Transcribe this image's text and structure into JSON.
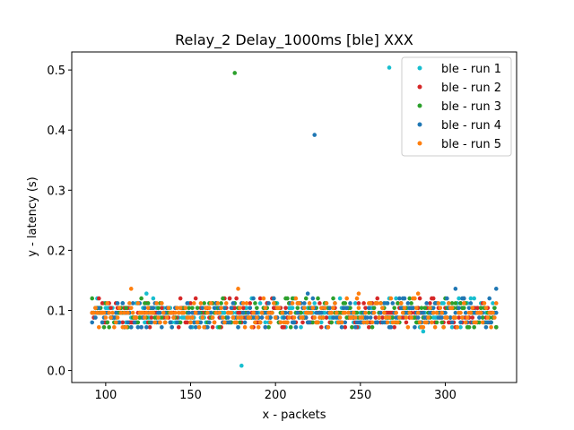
{
  "chart_data": {
    "type": "scatter",
    "title": "Relay_2 Delay_1000ms [ble] XXX",
    "xlabel": "x - packets",
    "ylabel": "y - latency (s)",
    "xlim": [
      80,
      342
    ],
    "ylim": [
      -0.02,
      0.53
    ],
    "xticks": [
      100,
      150,
      200,
      250,
      300
    ],
    "xtick_labels": [
      "100",
      "150",
      "200",
      "250",
      "300"
    ],
    "yticks": [
      0.0,
      0.1,
      0.2,
      0.3,
      0.4,
      0.5
    ],
    "ytick_labels": [
      "0.0",
      "0.1",
      "0.2",
      "0.3",
      "0.4",
      "0.5"
    ],
    "grid": false,
    "legend_position": "upper right",
    "x_range": [
      92,
      330
    ],
    "bulk_latency_range": [
      0.072,
      0.12
    ],
    "series": [
      {
        "name": "ble - run 1",
        "color": "#17becf",
        "outliers": [
          [
            267,
            0.504
          ],
          [
            180,
            0.008
          ],
          [
            287,
            0.065
          ],
          [
            124,
            0.128
          ]
        ]
      },
      {
        "name": "ble - run 2",
        "color": "#d62728",
        "outliers": []
      },
      {
        "name": "ble - run 3",
        "color": "#2ca02c",
        "outliers": [
          [
            176,
            0.495
          ]
        ]
      },
      {
        "name": "ble - run 4",
        "color": "#1f77b4",
        "outliers": [
          [
            223,
            0.392
          ],
          [
            219,
            0.128
          ],
          [
            306,
            0.136
          ],
          [
            330,
            0.136
          ]
        ]
      },
      {
        "name": "ble - run 5",
        "color": "#ff7f0e",
        "outliers": [
          [
            115,
            0.136
          ],
          [
            178,
            0.136
          ],
          [
            249,
            0.128
          ],
          [
            284,
            0.128
          ]
        ]
      }
    ]
  }
}
